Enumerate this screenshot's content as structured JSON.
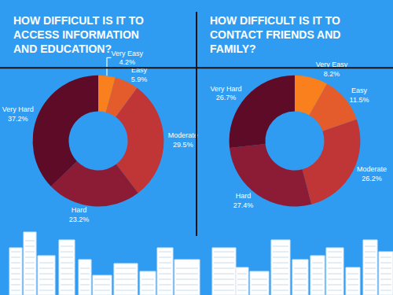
{
  "chart_data": [
    {
      "type": "pie",
      "title": "HOW DIFFICULT IS IT TO\nACCESS INFORMATION\nAND EDUCATION?",
      "categories": [
        "Very Easy",
        "Easy",
        "Moderate",
        "Hard",
        "Very Hard"
      ],
      "values": [
        4.2,
        5.9,
        29.5,
        23.2,
        37.2
      ],
      "value_labels": [
        "4.2%",
        "5.9%",
        "29.5%",
        "23.2%",
        "37.2%"
      ],
      "colors": [
        "#f9801d",
        "#e45c2c",
        "#c03535",
        "#8c1c35",
        "#5e0b27"
      ],
      "data_labels": true
    },
    {
      "type": "pie",
      "title": "HOW DIFFICULT IS IT TO\nCONTACT FRIENDS AND\nFAMILY?",
      "categories": [
        "Very Easy",
        "Easy",
        "Moderate",
        "Hard",
        "Very Hard"
      ],
      "values": [
        8.2,
        11.5,
        26.2,
        27.4,
        26.7
      ],
      "value_labels": [
        "8.2%",
        "11.5%",
        "26.2%",
        "27.4%",
        "26.7%"
      ],
      "colors": [
        "#f9801d",
        "#e45c2c",
        "#c03535",
        "#8c1c35",
        "#5e0b27"
      ],
      "data_labels": true
    }
  ]
}
